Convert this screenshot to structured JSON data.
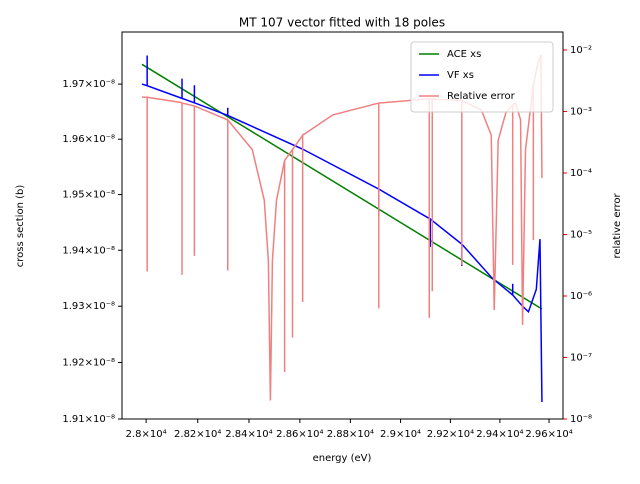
{
  "chart_data": {
    "type": "line",
    "title": "MT 107 vector fitted with 18 poles",
    "xlabel": "energy (eV)",
    "ylabel": "cross section (b)",
    "y2label": "relative error",
    "xscale": "log",
    "yscale": "log",
    "y2scale": "log",
    "xlim": [
      27907,
      29657
    ],
    "ylim": [
      1.91e-08,
      1.9795e-08
    ],
    "y2lim": [
      1e-08,
      0.0196
    ],
    "xticks": [
      {
        "value": 28000,
        "label": "2.8×10⁴"
      },
      {
        "value": 28200,
        "label": "2.82×10⁴"
      },
      {
        "value": 28400,
        "label": "2.84×10⁴"
      },
      {
        "value": 28600,
        "label": "2.86×10⁴"
      },
      {
        "value": 28800,
        "label": "2.88×10⁴"
      },
      {
        "value": 29000,
        "label": "2.9×10⁴"
      },
      {
        "value": 29200,
        "label": "2.92×10⁴"
      },
      {
        "value": 29400,
        "label": "2.94×10⁴"
      },
      {
        "value": 29600,
        "label": "2.96×10⁴"
      }
    ],
    "yticks": [
      {
        "value": 1.91e-08,
        "label": "1.91×10⁻⁸"
      },
      {
        "value": 1.92e-08,
        "label": "1.92×10⁻⁸"
      },
      {
        "value": 1.93e-08,
        "label": "1.93×10⁻⁸"
      },
      {
        "value": 1.94e-08,
        "label": "1.94×10⁻⁸"
      },
      {
        "value": 1.95e-08,
        "label": "1.95×10⁻⁸"
      },
      {
        "value": 1.96e-08,
        "label": "1.96×10⁻⁸"
      },
      {
        "value": 1.97e-08,
        "label": "1.97×10⁻⁸"
      }
    ],
    "y2ticks": [
      {
        "value": 1e-08,
        "label": "10⁻⁸"
      },
      {
        "value": 1e-07,
        "label": "10⁻⁷"
      },
      {
        "value": 1e-06,
        "label": "10⁻⁶"
      },
      {
        "value": 1e-05,
        "label": "10⁻⁵"
      },
      {
        "value": 0.0001,
        "label": "10⁻⁴"
      },
      {
        "value": 0.001,
        "label": "10⁻³"
      },
      {
        "value": 0.01,
        "label": "10⁻²"
      }
    ],
    "legend": "upper right",
    "ylabel_color": "blue",
    "y2label_color": "red",
    "series": [
      {
        "name": "ACE xs",
        "color": "green",
        "x": [
          27984,
          29571
        ],
        "values": [
          1.9736e-08,
          1.9295e-08
        ]
      },
      {
        "name": "VF xs",
        "color": "blue",
        "x": [
          27984,
          28004,
          28004,
          28004,
          28139,
          28139,
          28139,
          28187,
          28187,
          28187,
          28317,
          28317,
          28317,
          28611,
          28913,
          28913,
          28913,
          29119,
          29119,
          29119,
          29246,
          29246,
          29246,
          29369,
          29452,
          29452,
          29452,
          29492,
          29516,
          29548,
          29563,
          29571
        ],
        "values": [
          1.97e-08,
          1.9697e-08,
          1.9752e-08,
          1.9697e-08,
          1.9674e-08,
          1.971e-08,
          1.9674e-08,
          1.9666e-08,
          1.9698e-08,
          1.9666e-08,
          1.9643e-08,
          1.9657e-08,
          1.9643e-08,
          1.9582e-08,
          1.951e-08,
          1.9463e-08,
          1.951e-08,
          1.9456e-08,
          1.9406e-08,
          1.9456e-08,
          1.9411e-08,
          1.9372e-08,
          1.9411e-08,
          1.935e-08,
          1.932e-08,
          1.934e-08,
          1.932e-08,
          1.93e-08,
          1.929e-08,
          1.933e-08,
          1.942e-08,
          1.913e-08
        ]
      },
      {
        "name": "Relative error",
        "color": "#f08080",
        "axis": "y2",
        "x": [
          27984,
          28004,
          28004,
          28004,
          28135,
          28139,
          28139,
          28139,
          28187,
          28187,
          28187,
          28317,
          28317,
          28317,
          28413,
          28460,
          28476,
          28484,
          28492,
          28508,
          28540,
          28540,
          28540,
          28571,
          28571,
          28571,
          28611,
          28611,
          28611,
          28730,
          28913,
          28913,
          28913,
          29115,
          29115,
          29115,
          29127,
          29127,
          29127,
          29246,
          29246,
          29246,
          29325,
          29365,
          29377,
          29393,
          29425,
          29452,
          29452,
          29452,
          29464,
          29484,
          29492,
          29504,
          29536,
          29536,
          29536,
          29556,
          29567,
          29571
        ],
        "values": [
          0.00172,
          0.0017,
          2.5e-06,
          0.0017,
          0.0014,
          0.00137,
          2.2e-06,
          0.00137,
          0.00123,
          4.5e-06,
          0.00123,
          0.00073,
          2.6e-06,
          0.00073,
          0.00024,
          3.6e-05,
          3.8e-06,
          2e-08,
          3.8e-06,
          3.6e-05,
          0.00016,
          5.8e-08,
          0.00016,
          0.00024,
          2.1e-07,
          0.00024,
          0.00041,
          8e-07,
          0.00041,
          0.00088,
          0.00137,
          6.3e-07,
          0.00137,
          0.0016,
          4.4e-07,
          0.0016,
          0.0016,
          1.2e-06,
          0.0016,
          0.0015,
          3.2e-06,
          0.0015,
          0.00106,
          0.00041,
          5.9e-07,
          0.00034,
          0.00098,
          0.00128,
          3.2e-06,
          0.00128,
          0.00137,
          0.00073,
          3.4e-07,
          0.00024,
          0.0027,
          8.1e-06,
          0.0027,
          0.0064,
          0.0083,
          8.3e-05
        ]
      }
    ]
  }
}
